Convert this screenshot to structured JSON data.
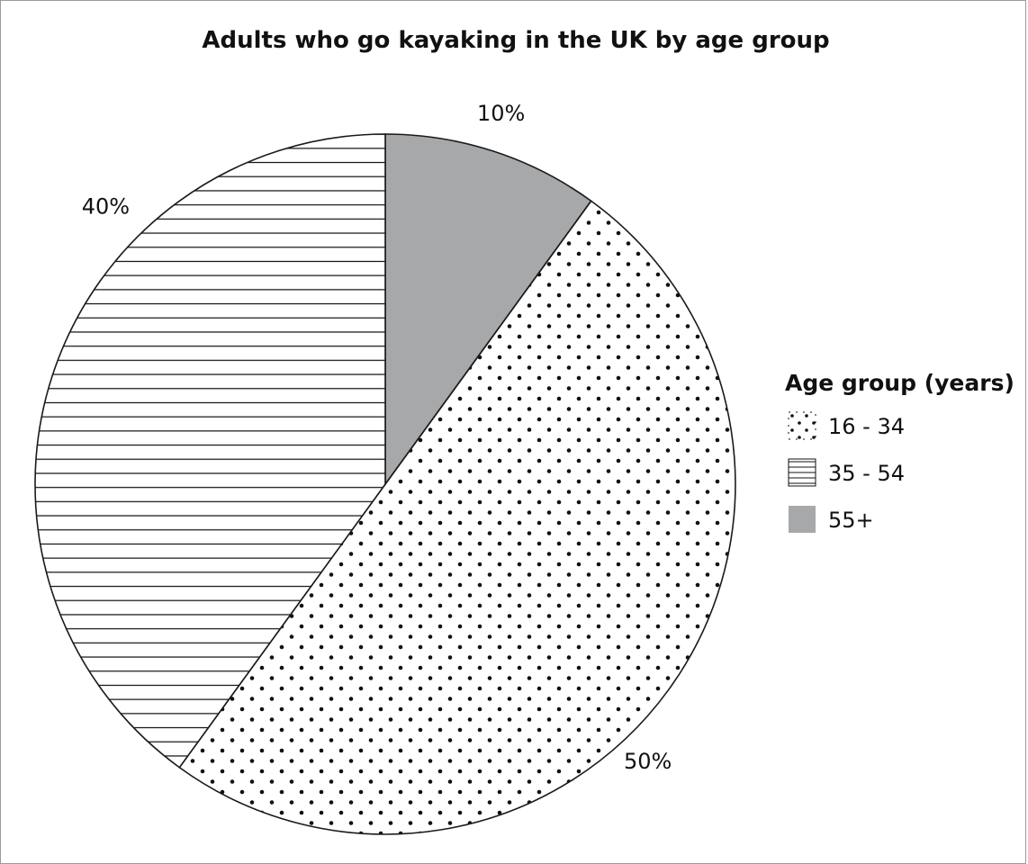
{
  "chart_data": {
    "type": "pie",
    "title": "Adults who go kayaking in the UK by age group",
    "legend_title": "Age group (years)",
    "legend_position": "right",
    "categories": [
      "16 - 34",
      "35 - 54",
      "55+"
    ],
    "values": [
      50,
      40,
      10
    ],
    "unit": "%",
    "data_labels": [
      "50%",
      "40%",
      "10%"
    ],
    "fills": {
      "16 - 34": "dots",
      "35 - 54": "horizontal-lines",
      "55+": "#a7a8aa"
    },
    "colors": {
      "outline": "#1a1a1a",
      "solid_grey": "#a7a8aa"
    }
  }
}
